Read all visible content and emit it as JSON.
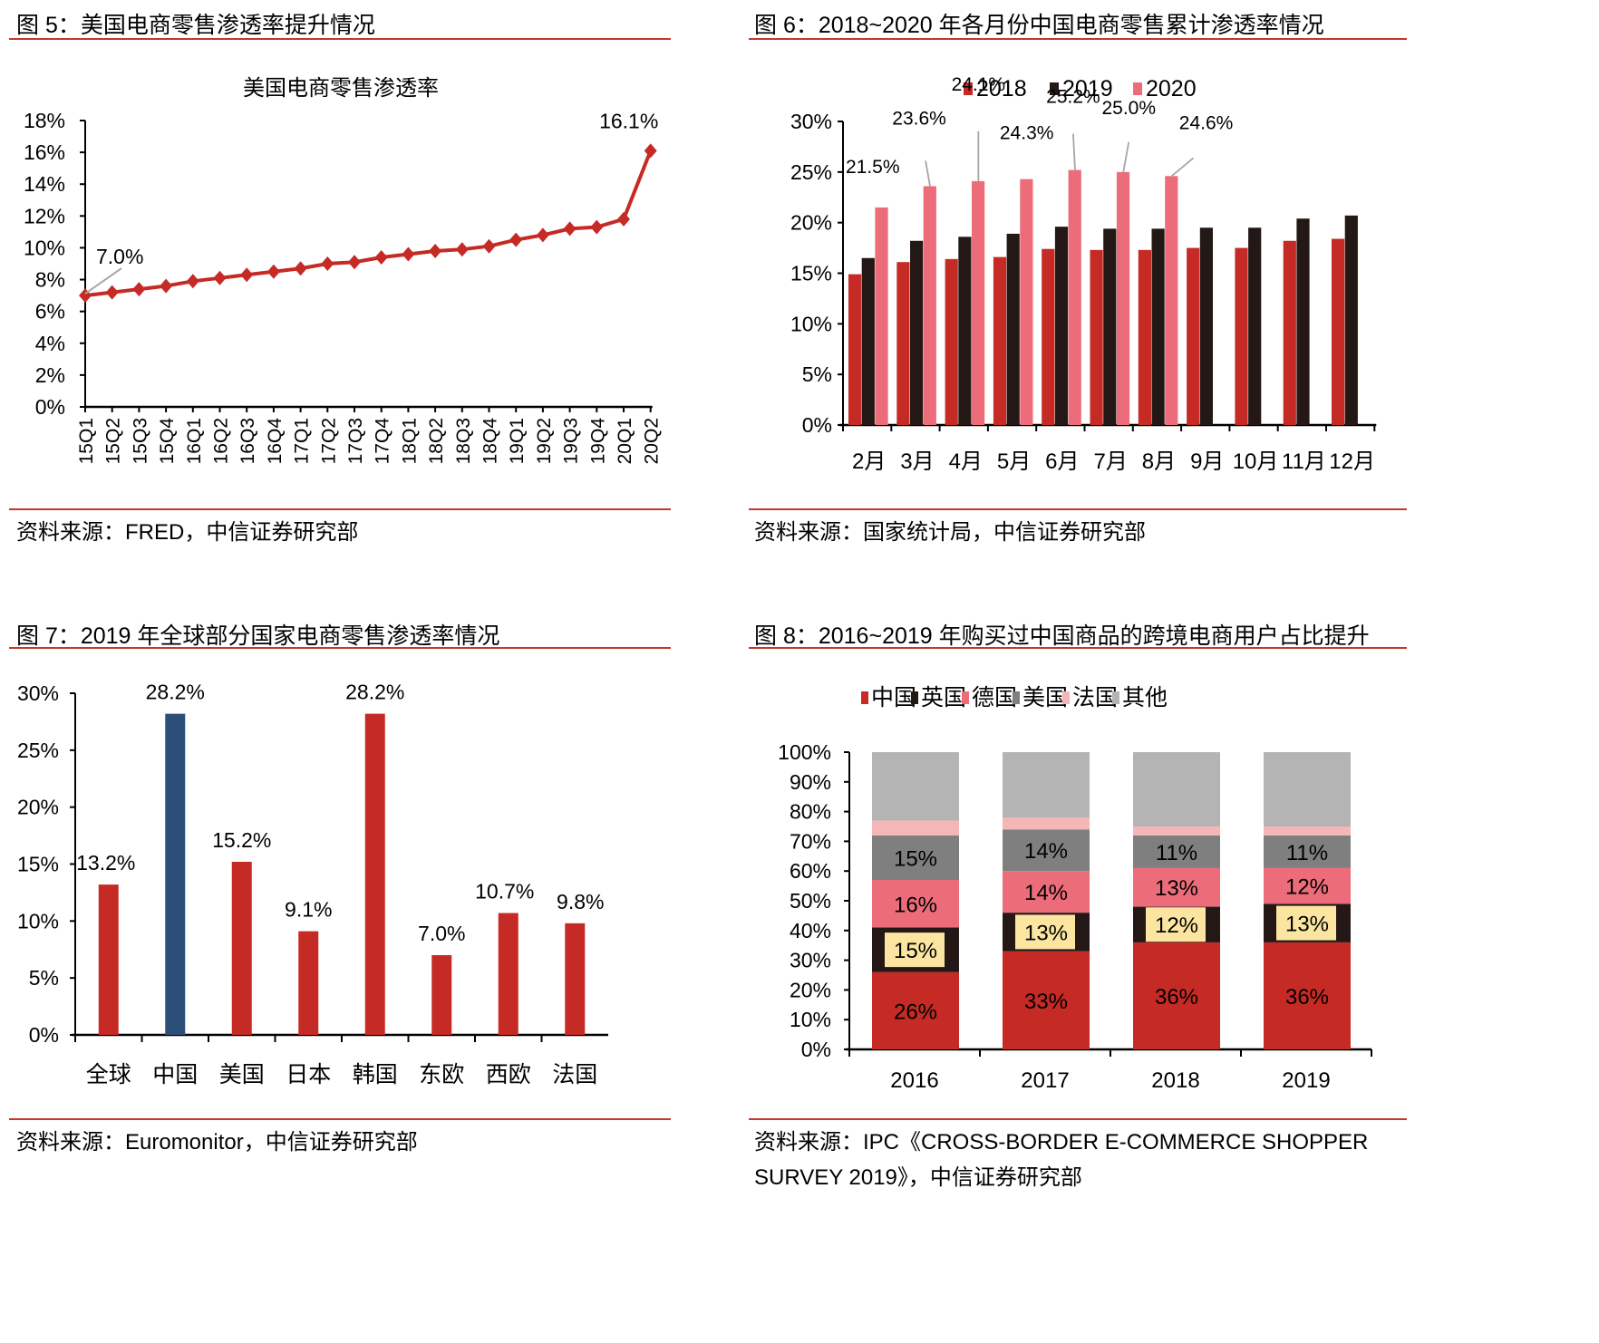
{
  "colors": {
    "red": "#c52a24",
    "black": "#231815",
    "pink": "#ec6c7a",
    "navy": "#2c4f78",
    "gray": "#7f7f7f",
    "light_pink": "#f4b6b6",
    "light_gray": "#b4b4b4",
    "label_box": "#fbe5a0",
    "rule": "#c0392b",
    "leader": "#a6a6a6"
  },
  "figures": [
    {
      "title": "图 5：美国电商零售渗透率提升情况",
      "source": "资料来源：FRED，中信证券研究部"
    },
    {
      "title": "图 6：2018~2020 年各月份中国电商零售累计渗透率情况",
      "source": "资料来源：国家统计局，中信证券研究部"
    },
    {
      "title": "图 7：2019 年全球部分国家电商零售渗透率情况",
      "source": "资料来源：Euromonitor，中信证券研究部"
    },
    {
      "title": "图 8：2016~2019 年购买过中国商品的跨境电商用户占比提升",
      "source_line1": "资料来源：IPC《CROSS-BORDER E-COMMERCE SHOPPER",
      "source_line2": "SURVEY 2019》，中信证券研究部"
    }
  ],
  "chart_data": [
    {
      "type": "line",
      "title": "美国电商零售渗透率",
      "xlabel": "",
      "ylabel": "",
      "x": [
        "15Q1",
        "15Q2",
        "15Q3",
        "15Q4",
        "16Q1",
        "16Q2",
        "16Q3",
        "16Q4",
        "17Q1",
        "17Q2",
        "17Q3",
        "17Q4",
        "18Q1",
        "18Q2",
        "18Q3",
        "18Q4",
        "19Q1",
        "19Q2",
        "19Q3",
        "19Q4",
        "20Q1",
        "20Q2"
      ],
      "series": [
        {
          "name": "美国电商零售渗透率",
          "values": [
            7.0,
            7.2,
            7.4,
            7.6,
            7.9,
            8.1,
            8.3,
            8.5,
            8.7,
            9.0,
            9.1,
            9.4,
            9.6,
            9.8,
            9.9,
            10.1,
            10.5,
            10.8,
            11.2,
            11.3,
            11.8,
            16.1
          ]
        }
      ],
      "annotations": [
        {
          "x": "15Q1",
          "text": "7.0%"
        },
        {
          "x": "20Q2",
          "text": "16.1%"
        }
      ],
      "ylim": [
        0,
        18
      ],
      "yticks": [
        "0%",
        "2%",
        "4%",
        "6%",
        "8%",
        "10%",
        "12%",
        "14%",
        "16%",
        "18%"
      ],
      "grid": false,
      "marker": "diamond"
    },
    {
      "type": "bar",
      "title": "",
      "categories": [
        "2月",
        "3月",
        "4月",
        "5月",
        "6月",
        "7月",
        "8月",
        "9月",
        "10月",
        "11月",
        "12月"
      ],
      "series": [
        {
          "name": "2018",
          "values": [
            14.9,
            16.1,
            16.4,
            16.6,
            17.4,
            17.3,
            17.3,
            17.5,
            17.5,
            18.2,
            18.4
          ]
        },
        {
          "name": "2019",
          "values": [
            16.5,
            18.2,
            18.6,
            18.9,
            19.6,
            19.4,
            19.4,
            19.5,
            19.5,
            20.4,
            20.7
          ]
        },
        {
          "name": "2020",
          "values": [
            21.5,
            23.6,
            24.1,
            24.3,
            25.2,
            25.0,
            24.6,
            null,
            null,
            null,
            null
          ]
        }
      ],
      "data_labels_2020": [
        "21.5%",
        "23.6%",
        "24.1%",
        "24.3%",
        "25.2%",
        "25.0%",
        "24.6%"
      ],
      "legend": [
        "2018",
        "2019",
        "2020"
      ],
      "legend_position": "top",
      "ylim": [
        0,
        30
      ],
      "yticks": [
        "0%",
        "5%",
        "10%",
        "15%",
        "20%",
        "25%",
        "30%"
      ],
      "grid": false
    },
    {
      "type": "bar",
      "title": "",
      "categories": [
        "全球",
        "中国",
        "美国",
        "日本",
        "韩国",
        "东欧",
        "西欧",
        "法国"
      ],
      "values": [
        13.2,
        28.2,
        15.2,
        9.1,
        28.2,
        7.0,
        10.7,
        9.8
      ],
      "data_labels": [
        "13.2%",
        "28.2%",
        "15.2%",
        "9.1%",
        "28.2%",
        "7.0%",
        "10.7%",
        "9.8%"
      ],
      "highlight": "中国",
      "ylim": [
        0,
        30
      ],
      "yticks": [
        "0%",
        "5%",
        "10%",
        "15%",
        "20%",
        "25%",
        "30%"
      ],
      "grid": false
    },
    {
      "type": "bar",
      "stacked": true,
      "title": "",
      "categories": [
        "2016",
        "2017",
        "2018",
        "2019"
      ],
      "series": [
        {
          "name": "中国",
          "values": [
            26,
            33,
            36,
            36
          ],
          "labels": [
            "26%",
            "33%",
            "36%",
            "36%"
          ]
        },
        {
          "name": "英国",
          "values": [
            15,
            13,
            12,
            13
          ],
          "labels": [
            "15%",
            "13%",
            "12%",
            "13%"
          ]
        },
        {
          "name": "德国",
          "values": [
            16,
            14,
            13,
            12
          ],
          "labels": [
            "16%",
            "14%",
            "13%",
            "12%"
          ]
        },
        {
          "name": "美国",
          "values": [
            15,
            14,
            11,
            11
          ],
          "labels": [
            "15%",
            "14%",
            "11%",
            "11%"
          ]
        },
        {
          "name": "法国",
          "values": [
            5,
            4,
            3,
            3
          ],
          "labels": []
        },
        {
          "name": "其他",
          "values": [
            23,
            22,
            25,
            25
          ],
          "labels": []
        }
      ],
      "legend": [
        "中国",
        "英国",
        "德国",
        "美国",
        "法国",
        "其他"
      ],
      "legend_position": "top",
      "ylim": [
        0,
        100
      ],
      "yticks": [
        "0%",
        "10%",
        "20%",
        "30%",
        "40%",
        "50%",
        "60%",
        "70%",
        "80%",
        "90%",
        "100%"
      ],
      "grid": false
    }
  ]
}
